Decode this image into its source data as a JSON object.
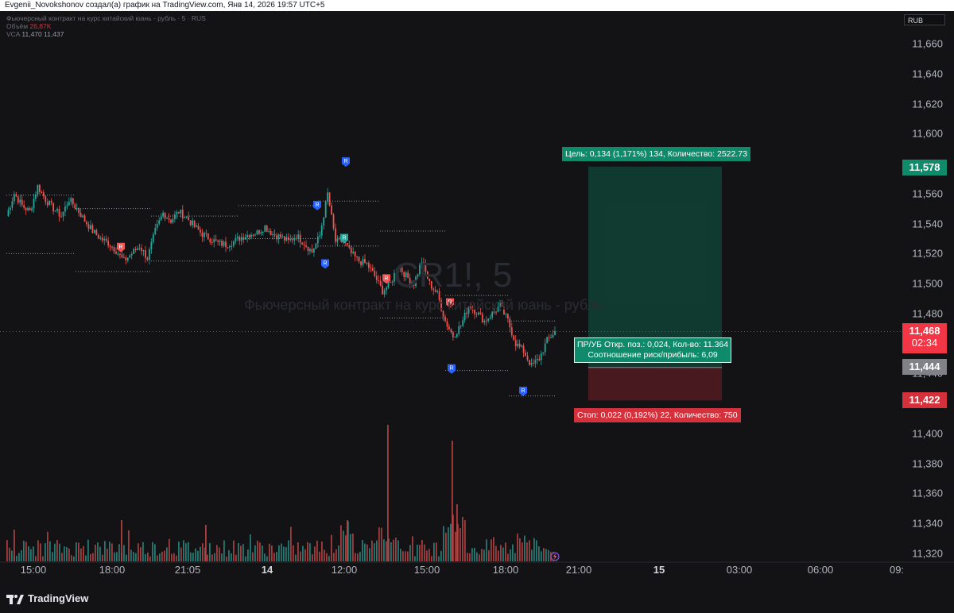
{
  "header": {
    "caption": "Evgenii_Novokshonov создал(а) график на TradingView.com, Янв 14, 2026 19:57 UTC+5"
  },
  "legend": {
    "title_line": "Фьючерсный контракт на курс китайский юань - рубль · 5 · RUS",
    "volume_label": "Объём",
    "volume_value": "26,87K",
    "vca_label": "VCA",
    "vca_values": "11,470  11,437"
  },
  "currency": "RUB",
  "watermark": {
    "symbol": "CR1!, 5",
    "description": "Фьючерсный контракт на курс китайский юань - рубль"
  },
  "position_tool": {
    "target_label": "Цель: 0,134 (1,171%) 134, Количество: 2522.73",
    "stop_label": "Стоп: 0,022 (0,192%) 22, Количество: 750",
    "pnl_line1": "ПР/УБ Откр. поз.: 0,024, Кол-во: 11.364",
    "pnl_line2": "Соотношение риск/прибыль: 6,09"
  },
  "price_badges": {
    "target": "11,578",
    "current": "11,468",
    "countdown": "02:34",
    "entry": "11,444",
    "stop": "11,422"
  },
  "colors": {
    "background": "#131316",
    "up": "#26a69a",
    "down": "#ef5350",
    "target_green": "#0f8a6a",
    "stop_red": "#d4313c",
    "signal_blue": "#2962ff"
  },
  "footer": {
    "brand": "TradingView"
  },
  "chart_data": {
    "type": "candlestick",
    "symbol": "CR1!",
    "timeframe": "5",
    "y_ticks": [
      "11,660",
      "11,640",
      "11,620",
      "11,600",
      "11,580",
      "11,560",
      "11,540",
      "11,520",
      "11,500",
      "11,480",
      "11,460",
      "11,440",
      "11,420",
      "11,400",
      "11,380",
      "11,360",
      "11,340",
      "11,320"
    ],
    "x_ticks": [
      {
        "label": "15:00",
        "bold": false
      },
      {
        "label": "18:00",
        "bold": false
      },
      {
        "label": "21:05",
        "bold": false
      },
      {
        "label": "14",
        "bold": true
      },
      {
        "label": "12:00",
        "bold": false
      },
      {
        "label": "15:00",
        "bold": false
      },
      {
        "label": "18:00",
        "bold": false
      },
      {
        "label": "21:00",
        "bold": false
      },
      {
        "label": "15",
        "bold": true
      },
      {
        "label": "03:00",
        "bold": false
      },
      {
        "label": "06:00",
        "bold": false
      },
      {
        "label": "09:",
        "bold": false
      }
    ],
    "ylim": [
      11310,
      11680
    ],
    "close_path": [
      11545,
      11560,
      11552,
      11548,
      11565,
      11556,
      11550,
      11545,
      11556,
      11550,
      11542,
      11535,
      11530,
      11527,
      11522,
      11515,
      11520,
      11525,
      11517,
      11535,
      11547,
      11542,
      11548,
      11544,
      11538,
      11533,
      11530,
      11527,
      11526,
      11528,
      11531,
      11533,
      11534,
      11538,
      11533,
      11531,
      11528,
      11532,
      11527,
      11521,
      11532,
      11560,
      11528,
      11528,
      11520,
      11515,
      11513,
      11505,
      11495,
      11500,
      11512,
      11505,
      11500,
      11515,
      11500,
      11493,
      11475,
      11465,
      11472,
      11485,
      11481,
      11475,
      11480,
      11485,
      11475,
      11460,
      11455,
      11445,
      11450,
      11462,
      11468
    ],
    "signals": [
      {
        "label": "R",
        "color": "red",
        "price": 11524
      },
      {
        "label": "R",
        "color": "blue",
        "price": 11552
      },
      {
        "label": "R",
        "color": "blue",
        "price": 11581
      },
      {
        "label": "R",
        "color": "blue",
        "price": 11513
      },
      {
        "label": "R",
        "color": "green",
        "price": 11530
      },
      {
        "label": "R",
        "color": "red",
        "price": 11503
      },
      {
        "label": "R",
        "color": "red",
        "price": 11487
      },
      {
        "label": "R",
        "color": "blue",
        "price": 11443
      },
      {
        "label": "R",
        "color": "blue",
        "price": 11428
      }
    ],
    "position": {
      "entry": 11444,
      "target": 11578,
      "stop": 11422,
      "current": 11468
    }
  }
}
